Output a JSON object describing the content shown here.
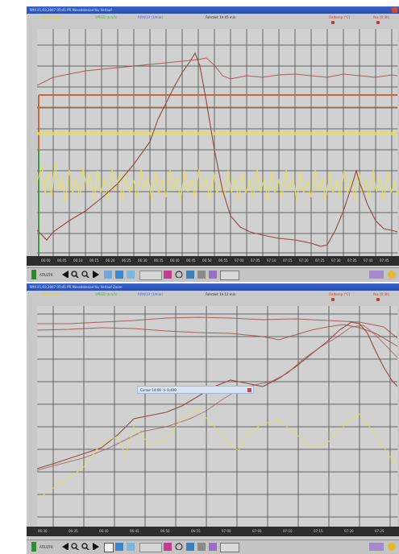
{
  "top": {
    "title": "Wfd  21.03.2007  05:41  PR  Messdatenarchiv  Verlauf",
    "channels": [
      {
        "label": "BRAKE (bar)",
        "color": "#d9cf3b"
      },
      {
        "label": "SPEED (km/h)",
        "color": "#4aa84a"
      },
      {
        "label": "RPM/10 (1/min)",
        "color": "#4c5fcf"
      },
      {
        "label": "Fahrzeit  1h  45 min",
        "color": "#222222"
      },
      {
        "label": "Oeltemp (°C)",
        "color": "#c23b3b"
      },
      {
        "label": "Pos (0-3h)",
        "color": "#c23b3b"
      }
    ],
    "x_ticks": [
      "06:00",
      "06:05",
      "06:10",
      "06:15",
      "06:20",
      "06:25",
      "06:30",
      "06:35",
      "06:40",
      "06:45",
      "06:50",
      "06:55",
      "07:00",
      "07:05",
      "07:10",
      "07:15",
      "07:20",
      "07:25",
      "07:30",
      "07:35",
      "07:40",
      "07:45",
      "07:50"
    ],
    "toolbar_text": "ATR/ZFR"
  },
  "bottom": {
    "title": "Wfd  21.03.2007  05:41  PR  Messdatenarchiv  Verlauf  Zoom",
    "channels": [
      {
        "label": "BRAKE (bar)",
        "color": "#d9cf3b"
      },
      {
        "label": "SPEED (km/h)",
        "color": "#4aa84a"
      },
      {
        "label": "RPM/10 (1/min)",
        "color": "#4c5fcf"
      },
      {
        "label": "Fahrzeit  1h  12 min",
        "color": "#222222"
      },
      {
        "label": "Oeltemp (°C)",
        "color": "#c23b3b"
      },
      {
        "label": "Pos (0-3h)",
        "color": "#c23b3b"
      }
    ],
    "readout": "Cursor    14:00  ->  0.400",
    "x_ticks": [
      "06:30",
      "06:35",
      "06:40",
      "06:45",
      "06:50",
      "06:55",
      "07:00",
      "07:05",
      "07:10",
      "07:15",
      "07:20",
      "07:25",
      "07:30"
    ],
    "toolbar_text": "ATR/ZFR"
  },
  "colors": {
    "background": "#c9c9c9",
    "grid": "#3e3e3e",
    "trace_red": "#a34a48",
    "trace_brown": "#8c4b42",
    "trace_yellow": "#e6df63",
    "trace_green": "#3d9a3d",
    "trace_orange": "#c9673a",
    "titlebar": "#2f56bb"
  }
}
